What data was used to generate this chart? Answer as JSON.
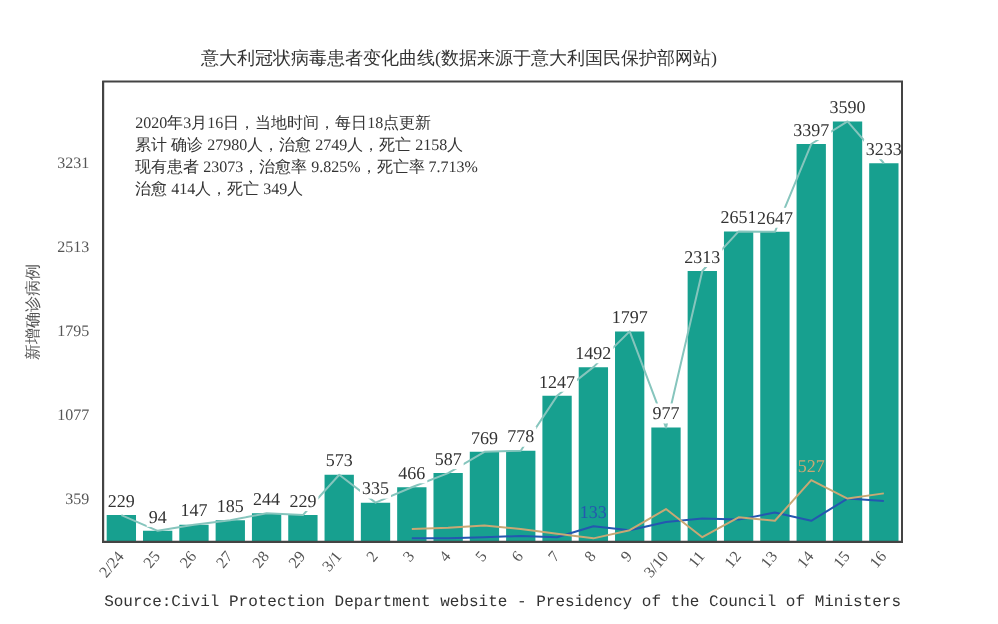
{
  "chart_data": {
    "type": "bar",
    "title": "意大利冠状病毒患者变化曲线(数据来源于意大利国民保护部网站)",
    "ylabel": "新增确诊病例",
    "categories": [
      "2/24",
      "25",
      "26",
      "27",
      "28",
      "29",
      "3/1",
      "2",
      "3",
      "4",
      "5",
      "6",
      "7",
      "8",
      "9",
      "3/10",
      "11",
      "12",
      "13",
      "14",
      "15",
      "16"
    ],
    "series": [
      {
        "color": "#17a08f",
        "values": [
          229,
          94,
          147,
          185,
          244,
          229,
          573,
          335,
          466,
          587,
          769,
          778,
          1247,
          1492,
          1797,
          977,
          2313,
          2651,
          2647,
          3397,
          3590,
          3233
        ],
        "value_labels": [
          "229",
          "94",
          "147",
          "185",
          "244",
          "229",
          "573",
          "335",
          "466",
          "587",
          "769",
          "778",
          "1247",
          "1492",
          "1797",
          "977",
          "2313",
          "2651",
          "2647",
          "3397",
          "3590",
          "3233"
        ]
      },
      {
        "type": "line",
        "color": "#86c5bd",
        "values": [
          229,
          94,
          147,
          185,
          244,
          229,
          573,
          335,
          466,
          587,
          769,
          778,
          1247,
          1492,
          1797,
          977,
          2313,
          2651,
          2647,
          3397,
          3590,
          3233
        ]
      },
      {
        "type": "line",
        "color": "#c8a874",
        "values": [
          null,
          null,
          null,
          null,
          null,
          null,
          null,
          null,
          110,
          120,
          140,
          110,
          70,
          30,
          100,
          280,
          40,
          210,
          180,
          527,
          370,
          414
        ],
        "value_labels": [
          null,
          null,
          null,
          null,
          null,
          null,
          null,
          null,
          null,
          null,
          null,
          null,
          null,
          null,
          null,
          null,
          null,
          null,
          null,
          "527",
          null,
          null
        ]
      },
      {
        "type": "line",
        "color": "#2457b0",
        "values": [
          null,
          null,
          null,
          null,
          null,
          null,
          null,
          null,
          30,
          30,
          40,
          50,
          40,
          133,
          100,
          170,
          200,
          190,
          250,
          180,
          370,
          349
        ],
        "value_labels": [
          null,
          null,
          null,
          null,
          null,
          null,
          null,
          null,
          null,
          null,
          null,
          null,
          null,
          "133",
          null,
          null,
          null,
          null,
          null,
          null,
          null,
          null
        ]
      }
    ],
    "ylim": [
      0,
      3930
    ],
    "yticks": [
      359,
      1077,
      1795,
      2513,
      3231
    ],
    "grid": false,
    "legend": false,
    "annotations": [
      "2020年3月16日，当地时间，每日18点更新",
      "累计 确诊 27980人，治愈 2749人，死亡 2158人",
      "现有患者 23073，治愈率 9.825%，死亡率 7.713%",
      "治愈 414人，死亡 349人",
      "Source:Civil Protection Department website - Presidency of the Council of Ministers"
    ]
  }
}
